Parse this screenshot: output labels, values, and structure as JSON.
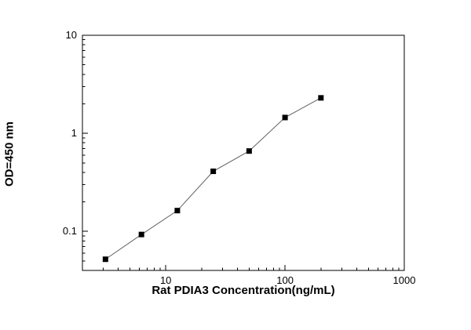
{
  "figure": {
    "background": "#ffffff",
    "frame_color": "#000000"
  },
  "chart_data": {
    "type": "line",
    "title": "",
    "xlabel": "Rat PDIA3 Concentration(ng/mL)",
    "ylabel": "OD=450 nm",
    "x_scale": "log",
    "y_scale": "log",
    "xlim": [
      2,
      1000
    ],
    "ylim": [
      0.04,
      10
    ],
    "x_ticks": [
      10,
      100,
      1000
    ],
    "x_tick_labels": [
      "10",
      "100",
      "1000"
    ],
    "y_ticks": [
      0.1,
      1,
      10
    ],
    "y_tick_labels": [
      "0.1",
      "1",
      "10"
    ],
    "x": [
      3.12,
      6.25,
      12.5,
      25,
      50,
      100,
      200
    ],
    "y": [
      0.052,
      0.093,
      0.163,
      0.41,
      0.66,
      1.45,
      2.3
    ],
    "series_name": "standard-curve",
    "marker": "square",
    "marker_size": 7,
    "marker_color": "#000000",
    "line_color": "#606060",
    "line_width": 1,
    "grid": false,
    "legend": false
  }
}
